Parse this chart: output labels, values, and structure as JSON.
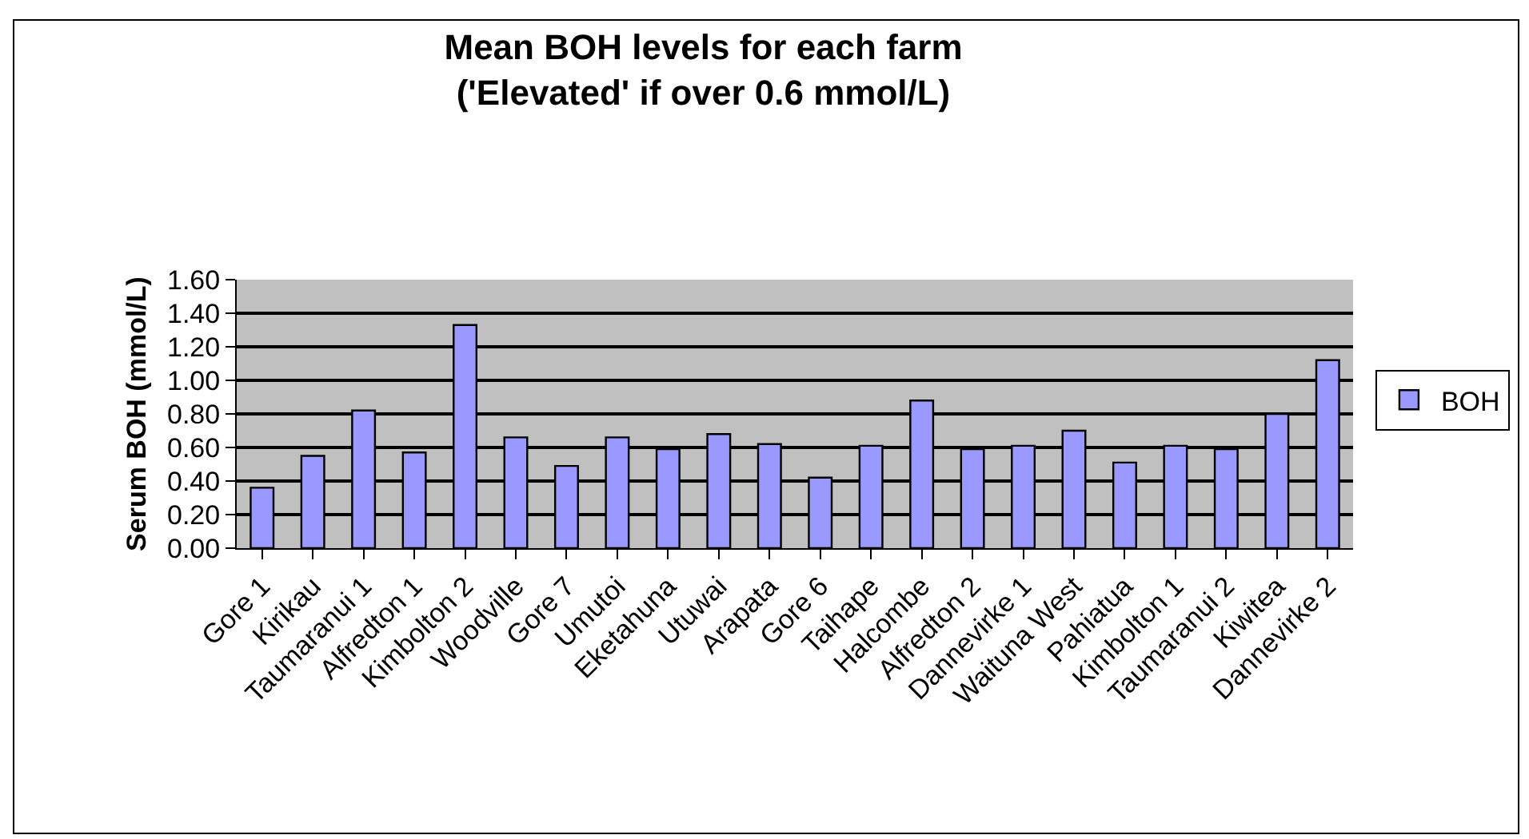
{
  "chart_data": {
    "type": "bar",
    "title": "Mean BOH levels for each farm\n('Elevated' if over 0.6 mmol/L)",
    "ylabel": "Serum BOH (mmol/L)",
    "categories": [
      "Gore 1",
      "Kirikau",
      "Taumaranui 1",
      "Alfredton 1",
      "Kimbolton 2",
      "Woodville",
      "Gore 7",
      "Umutoi",
      "Eketahuna",
      "Utuwai",
      "Arapata",
      "Gore 6",
      "Taihape",
      "Halcombe",
      "Alfredton 2",
      "Dannevirke 1",
      "Waituna West",
      "Pahiatua",
      "Kimbolton 1",
      "Taumaranui 2",
      "Kiwitea",
      "Dannevirke 2"
    ],
    "series": [
      {
        "name": "BOH",
        "color": "#9999ff",
        "values": [
          0.36,
          0.55,
          0.82,
          0.57,
          1.33,
          0.66,
          0.49,
          0.66,
          0.59,
          0.68,
          0.62,
          0.42,
          0.61,
          0.88,
          0.59,
          0.61,
          0.7,
          0.51,
          0.61,
          0.59,
          0.8,
          1.12
        ]
      }
    ],
    "ylim": [
      0,
      1.6
    ],
    "yticks": [
      {
        "value": 0,
        "label": "0.00"
      },
      {
        "value": 0.2,
        "label": "0.20"
      },
      {
        "value": 0.4,
        "label": "0.40"
      },
      {
        "value": 0.6,
        "label": "0.60"
      },
      {
        "value": 0.8,
        "label": "0.80"
      },
      {
        "value": 1,
        "label": "1.00"
      },
      {
        "value": 1.2,
        "label": "1.20"
      },
      {
        "value": 1.4,
        "label": "1.40"
      },
      {
        "value": 1.6,
        "label": "1.60"
      }
    ],
    "grid": "y",
    "legend": "right"
  }
}
